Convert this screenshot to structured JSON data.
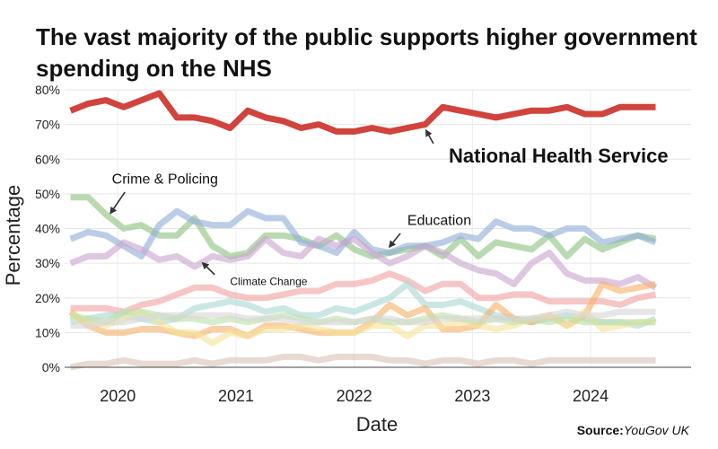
{
  "chart_data": {
    "type": "line",
    "title": "The vast majority of the public supports higher government spending on the NHS",
    "xlabel": "Date",
    "ylabel": "Percentage",
    "ylim": [
      0,
      80
    ],
    "xlim": [
      2019.55,
      2024.85
    ],
    "grid": true,
    "legend": "none",
    "x_ticks": [
      2020,
      2021,
      2022,
      2023,
      2024
    ],
    "x_tick_labels": [
      "2020",
      "2021",
      "2022",
      "2023",
      "2024"
    ],
    "y_ticks": [
      0,
      10,
      20,
      30,
      40,
      50,
      60,
      70,
      80
    ],
    "y_tick_labels": [
      "0%",
      "10%",
      "20%",
      "30%",
      "40%",
      "50%",
      "60%",
      "70%",
      "80%"
    ],
    "x": [
      2019.6,
      2019.75,
      2019.9,
      2020.05,
      2020.2,
      2020.35,
      2020.5,
      2020.65,
      2020.8,
      2020.95,
      2021.1,
      2021.25,
      2021.4,
      2021.55,
      2021.7,
      2021.85,
      2022.0,
      2022.15,
      2022.3,
      2022.45,
      2022.6,
      2022.75,
      2022.9,
      2023.05,
      2023.2,
      2023.35,
      2023.5,
      2023.65,
      2023.8,
      2023.95,
      2024.1,
      2024.25,
      2024.4,
      2024.55
    ],
    "series": [
      {
        "name": "National Health Service",
        "color": "#d0443d",
        "highlight": true,
        "values": [
          74,
          76,
          77,
          75,
          77,
          79,
          72,
          72,
          71,
          69,
          74,
          72,
          71,
          69,
          70,
          68,
          68,
          69,
          68,
          69,
          70,
          75,
          74,
          73,
          72,
          73,
          74,
          74,
          75,
          73,
          73,
          75,
          75,
          75
        ]
      },
      {
        "name": "Crime & Policing",
        "color": "#8ec480",
        "values": [
          49,
          49,
          44,
          40,
          41,
          38,
          38,
          43,
          35,
          32,
          33,
          38,
          38,
          37,
          35,
          38,
          34,
          32,
          33,
          34,
          35,
          32,
          37,
          32,
          36,
          35,
          34,
          38,
          32,
          37,
          34,
          36,
          38,
          37
        ]
      },
      {
        "name": "Education",
        "color": "#92afd6",
        "values": [
          37,
          39,
          38,
          35,
          32,
          41,
          45,
          42,
          41,
          41,
          45,
          43,
          43,
          36,
          35,
          33,
          39,
          34,
          33,
          35,
          35,
          36,
          38,
          37,
          42,
          40,
          40,
          38,
          40,
          40,
          36,
          37,
          38,
          36
        ]
      },
      {
        "name": "Climate Change",
        "color": "#c9a6ce",
        "values": [
          30,
          32,
          32,
          36,
          34,
          31,
          32,
          29,
          32,
          31,
          32,
          37,
          33,
          32,
          37,
          35,
          37,
          33,
          30,
          32,
          35,
          33,
          30,
          28,
          27,
          24,
          30,
          33,
          27,
          25,
          25,
          24,
          26,
          23
        ]
      },
      {
        "name": "",
        "color": "#f0a3a3",
        "values": [
          17,
          17,
          17,
          16,
          18,
          19,
          21,
          23,
          23,
          21,
          20,
          20,
          21,
          22,
          22,
          24,
          24,
          25,
          27,
          25,
          22,
          24,
          24,
          20,
          20,
          21,
          21,
          19,
          19,
          19,
          19,
          18,
          20,
          21
        ]
      },
      {
        "name": "",
        "color": "#a9d8d3",
        "values": [
          13,
          14,
          15,
          15,
          14,
          13,
          14,
          17,
          18,
          19,
          18,
          16,
          17,
          15,
          15,
          17,
          16,
          18,
          20,
          24,
          18,
          18,
          19,
          17,
          15,
          14,
          13,
          14,
          15,
          14,
          13,
          13,
          12,
          14
        ]
      },
      {
        "name": "",
        "color": "#f6b26b",
        "values": [
          16,
          12,
          10,
          10,
          11,
          11,
          10,
          9,
          11,
          11,
          9,
          12,
          12,
          11,
          10,
          10,
          10,
          13,
          18,
          15,
          17,
          11,
          11,
          12,
          18,
          14,
          13,
          15,
          12,
          15,
          24,
          22,
          23,
          24
        ]
      },
      {
        "name": "",
        "color": "#f5e39a",
        "values": [
          15,
          13,
          12,
          14,
          16,
          13,
          10,
          10,
          7,
          10,
          9,
          11,
          11,
          12,
          11,
          10,
          10,
          12,
          12,
          9,
          12,
          12,
          13,
          12,
          11,
          12,
          14,
          15,
          12,
          16,
          11,
          12,
          13,
          13
        ]
      },
      {
        "name": "",
        "color": "#bfe0a8",
        "values": [
          15,
          14,
          13,
          16,
          16,
          15,
          14,
          14,
          13,
          14,
          13,
          14,
          15,
          14,
          13,
          14,
          13,
          14,
          13,
          13,
          14,
          15,
          14,
          13,
          14,
          13,
          14,
          13,
          14,
          13,
          13,
          13,
          13,
          13
        ]
      },
      {
        "name": "",
        "color": "#d6d6d6",
        "values": [
          12,
          12,
          13,
          13,
          14,
          15,
          15,
          15,
          15,
          15,
          14,
          14,
          14,
          13,
          13,
          13,
          13,
          14,
          14,
          13,
          13,
          14,
          14,
          14,
          14,
          14,
          14,
          15,
          16,
          15,
          15,
          16,
          16,
          16
        ]
      },
      {
        "name": "",
        "color": "#d9c3b8",
        "values": [
          0,
          1,
          1,
          2,
          1,
          1,
          1,
          2,
          1,
          2,
          2,
          2,
          3,
          3,
          2,
          3,
          3,
          3,
          2,
          2,
          1,
          2,
          2,
          1,
          2,
          2,
          1,
          2,
          2,
          2,
          2,
          2,
          2,
          2
        ]
      }
    ],
    "annotations": [
      {
        "text": "National Health Service",
        "x": 2022.8,
        "y": 59,
        "size": "large",
        "weight": "bold",
        "arrow_from": [
          2022.67,
          64.5
        ],
        "arrow_to": [
          2022.61,
          68.2
        ]
      },
      {
        "text": "Crime & Policing",
        "x": 2019.95,
        "y": 53,
        "size": "medium",
        "weight": "normal",
        "arrow_from": [
          2020.06,
          50.5
        ],
        "arrow_to": [
          2019.94,
          44.5
        ]
      },
      {
        "text": "Education",
        "x": 2022.45,
        "y": 41,
        "size": "medium",
        "weight": "normal",
        "arrow_from": [
          2022.39,
          38.6
        ],
        "arrow_to": [
          2022.3,
          34.8
        ]
      },
      {
        "text": "Climate Change",
        "x": 2020.95,
        "y": 23.7,
        "size": "small",
        "weight": "normal",
        "arrow_from": [
          2020.82,
          26.7
        ],
        "arrow_to": [
          2020.72,
          30
        ]
      }
    ]
  },
  "source": {
    "label": "Source:",
    "value": "YouGov UK"
  }
}
